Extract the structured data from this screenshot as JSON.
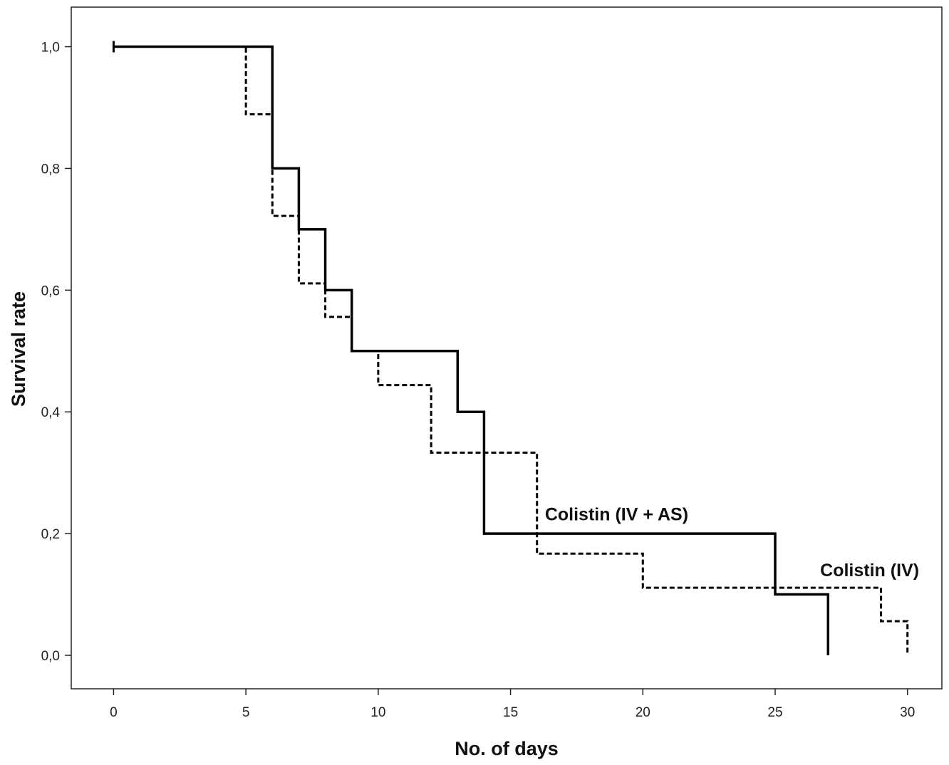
{
  "chart_data": {
    "type": "line",
    "subtype": "step",
    "title": "",
    "xlabel": "No. of days",
    "ylabel": "Survival rate",
    "xlim": [
      -1.6,
      31.3
    ],
    "ylim": [
      -0.055,
      1.065
    ],
    "x_ticks": [
      0,
      5,
      10,
      15,
      20,
      25,
      30
    ],
    "x_tick_labels": [
      "0",
      "5",
      "10",
      "15",
      "20",
      "25",
      "30"
    ],
    "y_ticks": [
      0.0,
      0.2,
      0.4,
      0.6,
      0.8,
      1.0
    ],
    "y_tick_labels": [
      "0,0",
      "0,2",
      "0,4",
      "0,6",
      "0,8",
      "1,0"
    ],
    "grid": false,
    "legend": "none",
    "series": [
      {
        "name": "Colistin (IV + AS)",
        "style": "solid",
        "color": "#000000",
        "steps": [
          {
            "x": 0,
            "y": 1.0
          },
          {
            "x": 6,
            "y": 0.8
          },
          {
            "x": 7,
            "y": 0.7
          },
          {
            "x": 8,
            "y": 0.6
          },
          {
            "x": 9,
            "y": 0.5
          },
          {
            "x": 13,
            "y": 0.4
          },
          {
            "x": 14,
            "y": 0.2
          },
          {
            "x": 25,
            "y": 0.1
          },
          {
            "x": 27,
            "y": 0.0
          }
        ],
        "censored": [
          {
            "x": 0,
            "y": 1.0
          }
        ]
      },
      {
        "name": "Colistin (IV)",
        "style": "dashed",
        "color": "#000000",
        "steps": [
          {
            "x": 0,
            "y": 1.0
          },
          {
            "x": 5,
            "y": 0.889
          },
          {
            "x": 6,
            "y": 0.722
          },
          {
            "x": 7,
            "y": 0.611
          },
          {
            "x": 8,
            "y": 0.556
          },
          {
            "x": 9,
            "y": 0.5
          },
          {
            "x": 10,
            "y": 0.444
          },
          {
            "x": 12,
            "y": 0.333
          },
          {
            "x": 16,
            "y": 0.167
          },
          {
            "x": 20,
            "y": 0.111
          },
          {
            "x": 29,
            "y": 0.056
          },
          {
            "x": 30,
            "y": 0.0
          }
        ],
        "censored": []
      }
    ],
    "annotations": [
      {
        "text": "Colistin (IV + AS)",
        "x": 16.3,
        "y": 0.222,
        "series": "Colistin (IV + AS)"
      },
      {
        "text": "Colistin (IV)",
        "x": 26.7,
        "y": 0.13,
        "series": "Colistin (IV)"
      }
    ]
  }
}
